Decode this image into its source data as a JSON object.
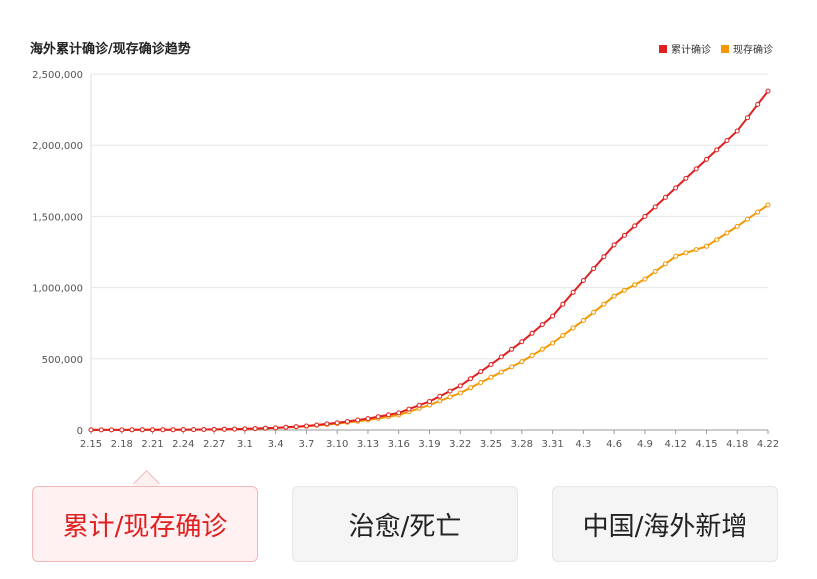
{
  "chart_data": {
    "type": "line",
    "title": "海外累计确诊/现存确诊趋势",
    "categories": [
      "2.15",
      "2.18",
      "2.21",
      "2.24",
      "2.27",
      "3.1",
      "3.4",
      "3.7",
      "3.10",
      "3.13",
      "3.16",
      "3.19",
      "3.22",
      "3.25",
      "3.28",
      "3.31",
      "4.3",
      "4.6",
      "4.9",
      "4.12",
      "4.15",
      "4.18",
      "4.22"
    ],
    "ylim": [
      0,
      2500000
    ],
    "y_ticks": [
      0,
      500000,
      1000000,
      1500000,
      2000000,
      2500000
    ],
    "y_tick_labels": [
      "0",
      "500,000",
      "1,000,000",
      "1,500,000",
      "2,000,000",
      "2,500,000"
    ],
    "grid": true,
    "legend_position": "top-right",
    "series": [
      {
        "name": "累计确诊",
        "color": "#e02020",
        "values": [
          500,
          1000,
          1500,
          2500,
          4000,
          8000,
          15000,
          28000,
          50000,
          80000,
          120000,
          200000,
          310000,
          460000,
          620000,
          800000,
          1050000,
          1300000,
          1500000,
          1700000,
          1900000,
          2100000,
          2380000
        ]
      },
      {
        "name": "现存确诊",
        "color": "#f39800",
        "values": [
          500,
          1000,
          1500,
          2400,
          3800,
          7500,
          14000,
          26000,
          45000,
          70000,
          105000,
          175000,
          260000,
          370000,
          480000,
          610000,
          770000,
          940000,
          1060000,
          1220000,
          1290000,
          1430000,
          1580000
        ]
      }
    ]
  },
  "tabs": [
    {
      "label": "累计/现存确诊",
      "active": true
    },
    {
      "label": "治愈/死亡",
      "active": false
    },
    {
      "label": "中国/海外新增",
      "active": false
    }
  ]
}
